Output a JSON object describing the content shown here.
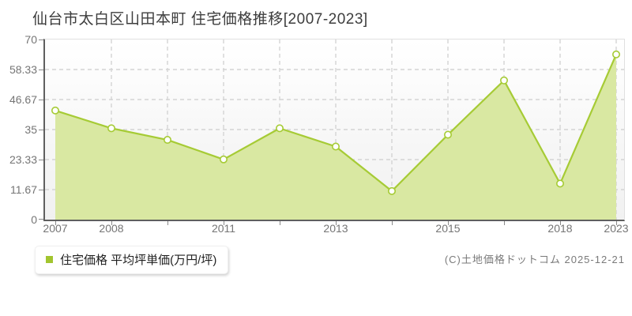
{
  "title": "仙台市太白区山田本町 住宅価格推移[2007-2023]",
  "legend": {
    "series_label": "住宅価格 平均坪単価(万円/坪)",
    "marker_color": "#a2c52f"
  },
  "footer": {
    "copyright": "(C)土地価格ドットコム 2025-12-21"
  },
  "colors": {
    "line": "#a6cb35",
    "fill": "#d9e8a2",
    "marker_fill": "#ffffff",
    "grid": "#d4d4d4",
    "axis": "#5f5f5f",
    "tick_label": "#757575"
  },
  "chart_data": {
    "type": "area",
    "title": "仙台市太白区山田本町 住宅価格推移[2007-2023]",
    "series_name": "住宅価格 平均坪単価(万円/坪)",
    "categories": [
      "2007",
      "2008",
      "",
      "2011",
      "",
      "2013",
      "",
      "2015",
      "",
      "2018",
      "2023"
    ],
    "labeled_x_ticks": [
      "2007",
      "2008",
      "2011",
      "2013",
      "2015",
      "2018",
      "2023"
    ],
    "values": [
      42.4,
      35.5,
      31.0,
      23.4,
      35.5,
      28.4,
      11.1,
      33.0,
      54.1,
      14.0,
      64.2
    ],
    "xlabel": "",
    "ylabel": "",
    "ylim": [
      0,
      70
    ],
    "y_ticks": [
      0,
      11.67,
      23.33,
      35,
      46.67,
      58.33,
      70
    ],
    "y_tick_labels": [
      "0",
      "11.67",
      "23.33",
      "35",
      "46.67",
      "58.33",
      "70"
    ],
    "grid": true,
    "legend_position": "bottom-left"
  }
}
